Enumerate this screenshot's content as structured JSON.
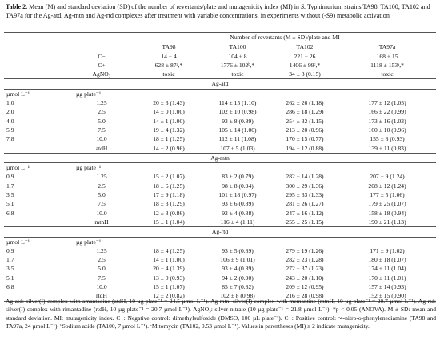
{
  "caption": {
    "label": "Table 2.",
    "text_before": "Mean (M) and standard deviation (SD) of the number of revertants/plate and mutagenicity index (MI) in",
    "italic": "S.",
    "text_after": "Typhimurium strains TA98, TA100, TA102 and TA97a for the Ag-atd, Ag-mtn and Ag-rtd complexes after treatment with variable concentrations, in experiments without (-S9) metabolic activation"
  },
  "header": {
    "group": "Number of revertants (M ± SD)/plate and MI",
    "strains": [
      "TA98",
      "TA100",
      "TA102",
      "TA97a"
    ]
  },
  "controls": [
    {
      "label": "C−",
      "values": [
        "14 ± 4",
        "104 ± 8",
        "221 ± 26",
        "168 ± 15"
      ]
    },
    {
      "label": "C+",
      "values": [
        "628 ± 87ᵃ,*",
        "1776 ± 102ᵇ,*",
        "1406 ± 99ᶜ,*",
        "1118 ± 153ᵃ,*"
      ]
    },
    {
      "label": "AgNO₃",
      "values": [
        "toxic",
        "toxic",
        "34 ± 8 (0.15)",
        "toxic"
      ]
    }
  ],
  "sections": [
    {
      "title": "Ag-atd",
      "units": [
        "µmol L⁻¹",
        "µg plate⁻¹"
      ],
      "rows": [
        [
          "1.0",
          "1.25",
          "20 ± 3 (1.43)",
          "114 ± 15 (1.10)",
          "262 ± 26 (1.18)",
          "177 ± 12 (1.05)"
        ],
        [
          "2.0",
          "2.5",
          "14 ± 0 (1.00)",
          "102 ± 10 (0.98)",
          "286 ± 18 (1.29)",
          "166 ± 22 (0.99)"
        ],
        [
          "4.0",
          "5.0",
          "14 ± 1 (1.00)",
          "93 ± 8 (0.89)",
          "254 ± 32 (1.15)",
          "173 ± 16 (1.03)"
        ],
        [
          "5.9",
          "7.5",
          "19 ± 4 (1.32)",
          "105 ± 14 (1.00)",
          "213 ± 20 (0.96)",
          "160 ± 10 (0.96)"
        ],
        [
          "7.8",
          "10.0",
          "18 ± 1 (1.25)",
          "112 ± 11 (1.08)",
          "170 ± 15 (0.77)",
          "155 ± 8 (0.93)"
        ],
        [
          null,
          "atdH",
          "14 ± 2 (0.96)",
          "107 ± 5 (1.03)",
          "194 ± 12 (0.88)",
          "139 ± 11 (0.83)"
        ]
      ]
    },
    {
      "title": "Ag-mtn",
      "units": [
        "µmol L⁻¹",
        "µg plate⁻¹"
      ],
      "rows": [
        [
          "0.9",
          "1.25",
          "15 ± 2 (1.07)",
          "83 ± 2 (0.79)",
          "282 ± 14 (1.28)",
          "207 ± 9 (1.24)"
        ],
        [
          "1.7",
          "2.5",
          "18 ± 6 (1.25)",
          "98 ± 8 (0.94)",
          "300 ± 29 (1.36)",
          "208 ± 12 (1.24)"
        ],
        [
          "3.5",
          "5.0",
          "17 ± 9 (1.18)",
          "101 ± 18 (0.97)",
          "295 ± 33 (1.33)",
          "177 ± 5 (1.06)"
        ],
        [
          "5.1",
          "7.5",
          "18 ± 3 (1.29)",
          "93 ± 6 (0.89)",
          "281 ± 26 (1.27)",
          "179 ± 25 (1.07)"
        ],
        [
          "6.8",
          "10.0",
          "12 ± 3 (0.86)",
          "92 ± 4 (0.88)",
          "247 ± 16 (1.12)",
          "158 ± 18 (0.94)"
        ],
        [
          null,
          "mtnH",
          "15 ± 1 (1.04)",
          "116 ± 4 (1.11)",
          "255 ± 25 (1.15)",
          "190 ± 21 (1.13)"
        ]
      ]
    },
    {
      "title": "Ag-rtd",
      "units": [
        "µmol L⁻¹",
        "µg plate⁻¹"
      ],
      "rows": [
        [
          "0.9",
          "1.25",
          "18 ± 4 (1.25)",
          "93 ± 5 (0.89)",
          "279 ± 19 (1.26)",
          "171 ± 9 (1.02)"
        ],
        [
          "1.7",
          "2.5",
          "14 ± 1 (1.00)",
          "106 ± 9 (1.01)",
          "282 ± 23 (1.28)",
          "180 ± 18 (1.07)"
        ],
        [
          "3.5",
          "5.0",
          "20 ± 4 (1.39)",
          "93 ± 4 (0.89)",
          "272 ± 37 (1.23)",
          "174 ± 11 (1.04)"
        ],
        [
          "5.1",
          "7.5",
          "13 ± 0 (0.93)",
          "94 ± 2 (0.90)",
          "243 ± 20 (1.10)",
          "170 ± 11 (1.01)"
        ],
        [
          "6.8",
          "10.0",
          "15 ± 1 (1.07)",
          "85 ± 7 (0.82)",
          "209 ± 12 (0.95)",
          "157 ± 14 (0.93)"
        ],
        [
          null,
          "rtdH",
          "12 ± 2 (0.82)",
          "102 ± 8 (0.98)",
          "216 ± 28 (0.98)",
          "152 ± 15 (0.90)"
        ]
      ]
    }
  ],
  "footnote": "Ag-atd: silver(I) complex with amantadine (atdH, 10 µg plate⁻¹ = 24.5 µmol L⁻¹). Ag-mtn: silver(I) complex with memantine (mtnH, 10 µg plate⁻¹ = 20.7 µmol L⁻¹). Ag-rtd: silver(I) complex with rimantadine (rtdH, 10 µg plate⁻¹ = 20.7 µmol L⁻¹). AgNO₃: silver nitrate (10 µg plate⁻¹ = 21.8 µmol L⁻¹). *p < 0.05 (ANOVA). M ± SD: mean and standard deviation. MI: mutagenicity index. C−: Negative control: dimethylsulfoxide (DMSO, 100 µL plate⁻¹). C+: Positive control: ᵃ4-nitro-o-phenylenediamine (TA98 and TA97a, 24 µmol L⁻¹). ᵇSodium azide (TA100, 7 µmol L⁻¹). ᶜMitomycin (TA102, 0.53 µmol L⁻¹). Values in parentheses (MI) ≥ 2 indicate mutagenicity."
}
